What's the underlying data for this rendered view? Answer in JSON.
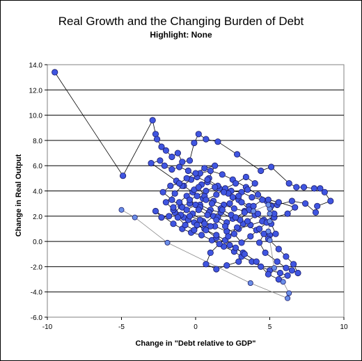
{
  "chart_data": {
    "type": "scatter",
    "title": "Real Growth and the Changing Burden of Debt",
    "subtitle": "Highlight: None",
    "xlabel": "Change in \"Debt relative to GDP\"",
    "ylabel": "Change in Real Output",
    "xlim": [
      -10,
      10
    ],
    "ylim": [
      -6,
      14
    ],
    "x_ticks": [
      -10,
      -5,
      0,
      5,
      10
    ],
    "y_ticks": [
      -6,
      -4,
      -2,
      0,
      2,
      4,
      6,
      8,
      10,
      12,
      14
    ],
    "y_tick_labels": [
      "-6.0",
      "-4.0",
      "-2.0",
      "0.0",
      "2.0",
      "4.0",
      "6.0",
      "8.0",
      "10.0",
      "12.0",
      "14.0"
    ],
    "grid": "horizontal",
    "legend": "none",
    "colors": {
      "dark_series": "#3f55e0",
      "light_series": "#6a8ee8",
      "line": "#000000",
      "light_line": "#888888",
      "plot_bg": "#ffffff"
    },
    "series": [
      {
        "points": [
          [
            -9.5,
            13.4
          ],
          [
            -4.9,
            5.2
          ],
          [
            -2.9,
            9.6
          ],
          [
            -2.7,
            8.5
          ],
          [
            -2.6,
            8.1
          ],
          [
            -2.3,
            7.5
          ],
          [
            -2.0,
            7.2
          ],
          [
            -1.6,
            6.7
          ],
          [
            -1.2,
            7.0
          ],
          [
            -0.9,
            6.3
          ],
          [
            -0.4,
            6.4
          ],
          [
            -0.1,
            7.8
          ],
          [
            0.2,
            8.5
          ],
          [
            0.7,
            8.1
          ],
          [
            1.5,
            7.9
          ],
          [
            2.8,
            6.9
          ],
          [
            4.4,
            5.6
          ],
          [
            5.1,
            5.9
          ],
          [
            6.3,
            4.6
          ],
          [
            6.8,
            4.3
          ],
          [
            7.3,
            4.3
          ],
          [
            8.0,
            4.2
          ],
          [
            8.4,
            4.2
          ],
          [
            8.7,
            3.9
          ],
          [
            9.1,
            3.2
          ],
          [
            8.2,
            2.8
          ],
          [
            8.1,
            2.3
          ],
          [
            7.4,
            3.0
          ],
          [
            6.5,
            3.2
          ],
          [
            5.5,
            2.9
          ],
          [
            4.8,
            3.2
          ],
          [
            3.8,
            3.5
          ],
          [
            3.1,
            3.9
          ],
          [
            2.4,
            4.0
          ],
          [
            1.6,
            4.2
          ],
          [
            0.8,
            4.7
          ],
          [
            0.1,
            5.1
          ],
          [
            -0.5,
            5.6
          ],
          [
            -1.1,
            5.9
          ],
          [
            -1.6,
            5.7
          ],
          [
            -2.1,
            6.0
          ],
          [
            -2.4,
            6.4
          ],
          [
            -3.0,
            6.2
          ],
          [
            -1.3,
            4.8
          ],
          [
            -0.8,
            4.4
          ],
          [
            -0.2,
            3.9
          ],
          [
            0.5,
            3.4
          ],
          [
            1.2,
            3.2
          ],
          [
            1.9,
            2.9
          ],
          [
            2.6,
            2.6
          ],
          [
            3.3,
            2.4
          ],
          [
            4.0,
            2.1
          ],
          [
            4.6,
            1.7
          ],
          [
            5.1,
            1.4
          ],
          [
            5.4,
            0.6
          ],
          [
            5.0,
            0.5
          ],
          [
            4.6,
            0.6
          ],
          [
            4.3,
            -0.1
          ],
          [
            4.7,
            -0.9
          ],
          [
            5.5,
            -1.6
          ],
          [
            6.1,
            -2.1
          ],
          [
            6.5,
            -2.3
          ],
          [
            6.9,
            -2.5
          ],
          [
            6.6,
            -1.8
          ],
          [
            6.1,
            -1.2
          ],
          [
            5.6,
            -0.6
          ],
          [
            4.9,
            0.2
          ],
          [
            4.1,
            0.9
          ],
          [
            3.2,
            1.4
          ],
          [
            2.5,
            1.8
          ],
          [
            1.7,
            2.3
          ],
          [
            1.0,
            2.5
          ],
          [
            0.3,
            2.9
          ],
          [
            -0.4,
            3.0
          ],
          [
            -1.0,
            2.8
          ],
          [
            -1.4,
            2.3
          ],
          [
            -1.8,
            2.0
          ],
          [
            -2.3,
            1.9
          ],
          [
            -2.7,
            2.4
          ],
          [
            -1.5,
            1.4
          ],
          [
            -0.9,
            1.0
          ],
          [
            -0.3,
            0.7
          ],
          [
            0.4,
            0.5
          ],
          [
            1.1,
            0.1
          ],
          [
            1.9,
            -0.4
          ],
          [
            2.6,
            -0.8
          ],
          [
            3.1,
            -1.2
          ],
          [
            3.8,
            -1.6
          ],
          [
            4.4,
            -2.0
          ],
          [
            5.0,
            -2.3
          ],
          [
            5.7,
            -2.5
          ],
          [
            6.2,
            -2.7
          ],
          [
            5.6,
            -3.0
          ],
          [
            4.9,
            -2.6
          ],
          [
            4.1,
            -1.6
          ],
          [
            3.2,
            -0.9
          ],
          [
            2.3,
            -0.3
          ],
          [
            1.4,
            0.3
          ],
          [
            0.6,
            1.0
          ],
          [
            -0.1,
            1.5
          ],
          [
            -0.8,
            1.9
          ],
          [
            -1.5,
            2.5
          ],
          [
            -2.0,
            3.1
          ],
          [
            -1.4,
            3.8
          ],
          [
            -0.9,
            4.4
          ],
          [
            -0.3,
            4.9
          ],
          [
            0.3,
            5.4
          ],
          [
            1.0,
            5.6
          ],
          [
            1.8,
            5.3
          ],
          [
            2.5,
            4.9
          ],
          [
            3.4,
            4.3
          ],
          [
            4.2,
            3.7
          ],
          [
            4.9,
            3.3
          ],
          [
            5.6,
            3.1
          ],
          [
            6.7,
            2.7
          ],
          [
            6.2,
            2.2
          ],
          [
            5.3,
            1.9
          ],
          [
            4.5,
            1.6
          ],
          [
            3.7,
            1.3
          ],
          [
            2.9,
            1.0
          ],
          [
            2.1,
            0.8
          ],
          [
            1.3,
            1.2
          ],
          [
            0.5,
            1.6
          ],
          [
            -0.2,
            2.2
          ],
          [
            -0.9,
            2.7
          ],
          [
            -1.6,
            3.3
          ],
          [
            -2.2,
            3.9
          ],
          [
            -1.7,
            4.4
          ],
          [
            -1.1,
            4.6
          ],
          [
            -0.6,
            5.0
          ],
          [
            0.0,
            5.4
          ],
          [
            0.6,
            5.8
          ],
          [
            1.3,
            6.0
          ],
          [
            0.9,
            5.0
          ],
          [
            0.4,
            4.5
          ],
          [
            -0.1,
            4.1
          ],
          [
            -0.6,
            3.6
          ],
          [
            -1.1,
            3.1
          ],
          [
            -1.5,
            2.7
          ],
          [
            -1.0,
            2.1
          ],
          [
            -0.5,
            1.7
          ],
          [
            0.1,
            1.3
          ],
          [
            0.7,
            0.9
          ],
          [
            1.4,
            0.5
          ],
          [
            2.0,
            0.1
          ],
          [
            2.7,
            -0.5
          ],
          [
            3.3,
            -1.0
          ],
          [
            2.9,
            -1.6
          ],
          [
            2.1,
            -1.9
          ],
          [
            1.4,
            -2.2
          ],
          [
            0.7,
            -1.8
          ],
          [
            1.0,
            -0.9
          ],
          [
            1.6,
            -0.2
          ],
          [
            2.2,
            0.4
          ],
          [
            2.8,
            1.1
          ],
          [
            3.5,
            1.6
          ],
          [
            4.2,
            2.2
          ],
          [
            3.6,
            2.8
          ],
          [
            2.9,
            3.3
          ],
          [
            2.2,
            3.8
          ],
          [
            1.5,
            4.4
          ],
          [
            0.8,
            4.9
          ],
          [
            0.2,
            4.3
          ],
          [
            0.6,
            3.6
          ],
          [
            1.1,
            3.0
          ],
          [
            1.7,
            2.6
          ],
          [
            2.3,
            3.0
          ],
          [
            2.9,
            3.6
          ],
          [
            3.5,
            4.1
          ],
          [
            4.0,
            4.6
          ],
          [
            3.4,
            5.1
          ],
          [
            2.7,
            4.6
          ],
          [
            2.0,
            4.2
          ],
          [
            1.4,
            3.7
          ],
          [
            0.7,
            3.3
          ],
          [
            0.0,
            2.9
          ],
          [
            -0.6,
            2.5
          ],
          [
            -1.2,
            1.9
          ],
          [
            -0.7,
            1.3
          ],
          [
            -0.1,
            0.9
          ],
          [
            0.6,
            1.4
          ],
          [
            1.2,
            2.0
          ],
          [
            1.8,
            2.5
          ],
          [
            2.4,
            2.1
          ],
          [
            3.0,
            1.7
          ],
          [
            3.6,
            2.5
          ],
          [
            3.1,
            3.1
          ],
          [
            2.5,
            3.5
          ],
          [
            1.9,
            3.9
          ],
          [
            1.3,
            4.3
          ],
          [
            0.7,
            4.0
          ],
          [
            0.1,
            3.6
          ],
          [
            -0.4,
            3.3
          ],
          [
            0.3,
            2.7
          ],
          [
            0.9,
            2.3
          ],
          [
            1.5,
            1.9
          ],
          [
            2.1,
            1.5
          ],
          [
            2.7,
            1.9
          ],
          [
            3.3,
            2.3
          ],
          [
            3.9,
            2.8
          ],
          [
            4.5,
            3.3
          ],
          [
            5.1,
            2.8
          ],
          [
            5.3,
            2.2
          ],
          [
            4.8,
            1.5
          ],
          [
            4.3,
            1.0
          ],
          [
            3.7,
            0.4
          ],
          [
            3.1,
            -0.1
          ],
          [
            2.6,
            0.6
          ],
          [
            2.0,
            1.2
          ],
          [
            1.4,
            1.7
          ],
          [
            0.8,
            2.1
          ],
          [
            0.2,
            2.5
          ],
          [
            -0.4,
            2.0
          ],
          [
            0.3,
            1.7
          ],
          [
            1.0,
            1.2
          ]
        ],
        "connected": true
      },
      {
        "points": [
          [
            -5.0,
            2.5
          ],
          [
            -4.1,
            1.9
          ],
          [
            -1.9,
            -0.1
          ],
          [
            3.7,
            -3.3
          ],
          [
            6.2,
            -4.5
          ],
          [
            6.3,
            -4.1
          ],
          [
            5.9,
            -3.2
          ],
          [
            5.3,
            -2.1
          ],
          [
            5.0,
            0.1
          ],
          [
            4.9,
            0.8
          ],
          [
            5.0,
            1.6
          ],
          [
            5.0,
            2.2
          ],
          [
            5.0,
            2.6
          ],
          [
            4.9,
            2.9
          ],
          [
            3.9,
            2.4
          ]
        ],
        "connected": true
      }
    ]
  }
}
